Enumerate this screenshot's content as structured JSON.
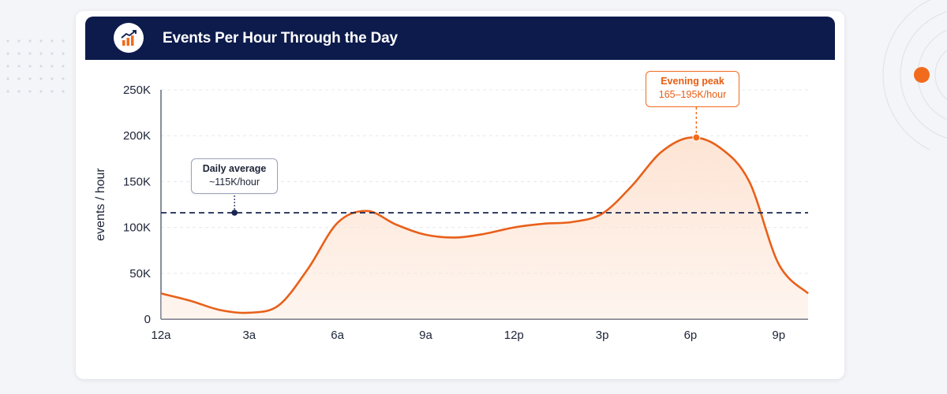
{
  "title": "Events Per Hour Through the Day",
  "header_icon": "bar-chart-trend-icon",
  "colors": {
    "header_bg": "#0d1b4c",
    "line": "#e8601a",
    "fill": "#fde3d2",
    "average_line": "#1a2550",
    "accent": "#f26b1d"
  },
  "annotations": {
    "average": {
      "title": "Daily average",
      "value": "~115K/hour"
    },
    "peak": {
      "title": "Evening peak",
      "value": "165–195K/hour"
    }
  },
  "chart_data": {
    "type": "area",
    "title": "Events Per Hour Through the Day",
    "xlabel": "",
    "ylabel": "events / hour",
    "x_tick_labels": [
      "12a",
      "3a",
      "6a",
      "9a",
      "12p",
      "3p",
      "6p",
      "9p"
    ],
    "x_ticks_hours": [
      0,
      3,
      6,
      9,
      12,
      15,
      18,
      21
    ],
    "y_tick_labels": [
      "0",
      "50K",
      "100K",
      "150K",
      "200K",
      "250K"
    ],
    "ylim": [
      0,
      250000
    ],
    "xlim": [
      0,
      22
    ],
    "grid": true,
    "series": [
      {
        "x": [
          0,
          1,
          2,
          3,
          4,
          5,
          6,
          7,
          8,
          9,
          10,
          11,
          12,
          13,
          14,
          15,
          16,
          17,
          18,
          19,
          20,
          21,
          22
        ],
        "values": [
          28000,
          20000,
          10000,
          7000,
          15000,
          55000,
          105000,
          118000,
          103000,
          92000,
          89000,
          93000,
          100000,
          104000,
          106000,
          115000,
          145000,
          182000,
          198000,
          187000,
          150000,
          60000,
          28000
        ]
      }
    ],
    "reference_lines": [
      {
        "label": "Daily average",
        "value": 116000
      }
    ],
    "markers": [
      {
        "label": "Evening peak",
        "x": 18.2,
        "y": 198000
      },
      {
        "label": "Daily average",
        "x": 2.5,
        "y": 116000
      }
    ]
  }
}
